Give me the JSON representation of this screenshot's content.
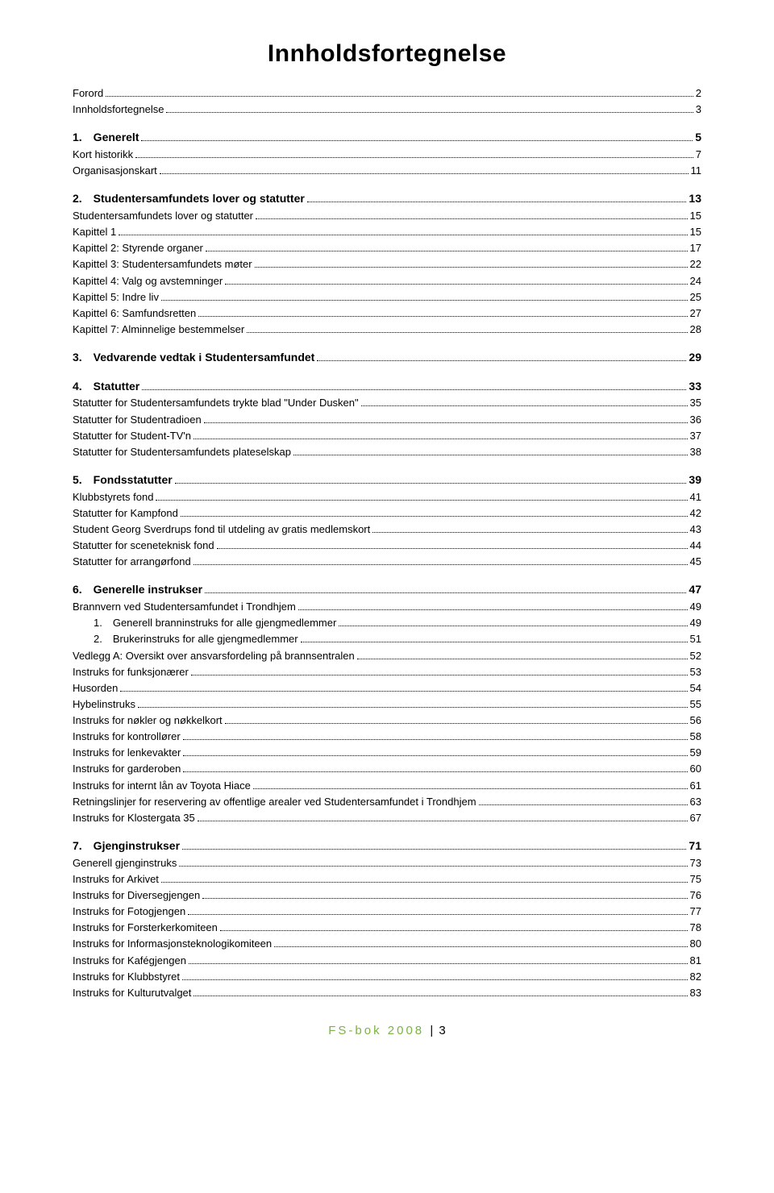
{
  "title": "Innholdsfortegnelse",
  "footer": {
    "label": "FS-bok 2008",
    "sep": "|",
    "page": "3"
  },
  "colors": {
    "footer_green": "#7cb342",
    "text": "#000000",
    "bg": "#ffffff"
  },
  "toc": [
    {
      "label": "Forord",
      "page": "2",
      "bold": false
    },
    {
      "label": "Innholdsfortegnelse",
      "page": "3",
      "bold": false
    },
    {
      "spacer": true
    },
    {
      "label": "1. Generelt",
      "page": "5",
      "bold": true
    },
    {
      "label": "Kort historikk",
      "page": "7",
      "bold": false
    },
    {
      "label": "Organisasjonskart",
      "page": "11",
      "bold": false
    },
    {
      "spacer": true
    },
    {
      "label": "2. Studentersamfundets lover og statutter",
      "page": "13",
      "bold": true
    },
    {
      "label": "Studentersamfundets lover og statutter",
      "page": "15",
      "bold": false
    },
    {
      "label": "Kapittel 1",
      "page": "15",
      "bold": false
    },
    {
      "label": "Kapittel 2: Styrende organer",
      "page": "17",
      "bold": false
    },
    {
      "label": "Kapittel 3: Studentersamfundets møter",
      "page": "22",
      "bold": false
    },
    {
      "label": "Kapittel 4: Valg og avstemninger",
      "page": "24",
      "bold": false
    },
    {
      "label": "Kapittel 5: Indre liv",
      "page": "25",
      "bold": false
    },
    {
      "label": "Kapittel 6: Samfundsretten",
      "page": "27",
      "bold": false
    },
    {
      "label": "Kapittel 7: Alminnelige bestemmelser",
      "page": "28",
      "bold": false
    },
    {
      "spacer": true
    },
    {
      "label": "3. Vedvarende vedtak i Studentersamfundet",
      "page": "29",
      "bold": true
    },
    {
      "spacer": true
    },
    {
      "label": "4. Statutter",
      "page": "33",
      "bold": true
    },
    {
      "label": "Statutter for Studentersamfundets trykte blad \"Under Dusken\"",
      "page": "35",
      "bold": false
    },
    {
      "label": "Statutter for Studentradioen",
      "page": "36",
      "bold": false
    },
    {
      "label": "Statutter for Student-TV'n",
      "page": "37",
      "bold": false
    },
    {
      "label": "Statutter for Studentersamfundets plateselskap",
      "page": "38",
      "bold": false
    },
    {
      "spacer": true
    },
    {
      "label": "5. Fondsstatutter",
      "page": "39",
      "bold": true
    },
    {
      "label": "Klubbstyrets fond",
      "page": "41",
      "bold": false
    },
    {
      "label": "Statutter for Kampfond",
      "page": "42",
      "bold": false
    },
    {
      "label": "Student Georg Sverdrups fond til utdeling av gratis medlemskort",
      "page": "43",
      "bold": false
    },
    {
      "label": "Statutter for sceneteknisk fond",
      "page": "44",
      "bold": false
    },
    {
      "label": "Statutter for arrangørfond",
      "page": "45",
      "bold": false
    },
    {
      "spacer": true
    },
    {
      "label": "6. Generelle instrukser",
      "page": "47",
      "bold": true
    },
    {
      "label": "Brannvern ved Studentersamfundet i Trondhjem",
      "page": "49",
      "bold": false
    },
    {
      "label": "1. Generell branninstruks for alle gjengmedlemmer",
      "page": "49",
      "bold": false,
      "indent": true
    },
    {
      "label": "2. Brukerinstruks for alle gjengmedlemmer",
      "page": "51",
      "bold": false,
      "indent": true
    },
    {
      "label": "Vedlegg A: Oversikt over ansvarsfordeling på brannsentralen",
      "page": "52",
      "bold": false
    },
    {
      "label": "Instruks for funksjonærer",
      "page": "53",
      "bold": false
    },
    {
      "label": "Husorden",
      "page": "54",
      "bold": false
    },
    {
      "label": "Hybelinstruks",
      "page": "55",
      "bold": false
    },
    {
      "label": "Instruks for nøkler og nøkkelkort",
      "page": "56",
      "bold": false
    },
    {
      "label": "Instruks for kontrollører",
      "page": "58",
      "bold": false
    },
    {
      "label": "Instruks for lenkevakter",
      "page": "59",
      "bold": false
    },
    {
      "label": "Instruks for garderoben",
      "page": "60",
      "bold": false
    },
    {
      "label": "Instruks for internt lån av Toyota Hiace",
      "page": "61",
      "bold": false
    },
    {
      "label": "Retningslinjer for reservering av offentlige arealer ved Studentersamfundet i Trondhjem",
      "page": "63",
      "bold": false
    },
    {
      "label": "Instruks for Klostergata 35",
      "page": "67",
      "bold": false
    },
    {
      "spacer": true
    },
    {
      "label": "7. Gjenginstrukser",
      "page": "71",
      "bold": true
    },
    {
      "label": "Generell gjenginstruks",
      "page": "73",
      "bold": false
    },
    {
      "label": "Instruks for Arkivet",
      "page": "75",
      "bold": false
    },
    {
      "label": "Instruks for Diversegjengen",
      "page": "76",
      "bold": false
    },
    {
      "label": "Instruks for Fotogjengen",
      "page": "77",
      "bold": false
    },
    {
      "label": "Instruks for Forsterkerkomiteen",
      "page": "78",
      "bold": false
    },
    {
      "label": "Instruks for Informasjonsteknologikomiteen",
      "page": "80",
      "bold": false
    },
    {
      "label": "Instruks for Kafégjengen",
      "page": "81",
      "bold": false
    },
    {
      "label": "Instruks for Klubbstyret",
      "page": "82",
      "bold": false
    },
    {
      "label": "Instruks for Kulturutvalget",
      "page": "83",
      "bold": false
    }
  ]
}
